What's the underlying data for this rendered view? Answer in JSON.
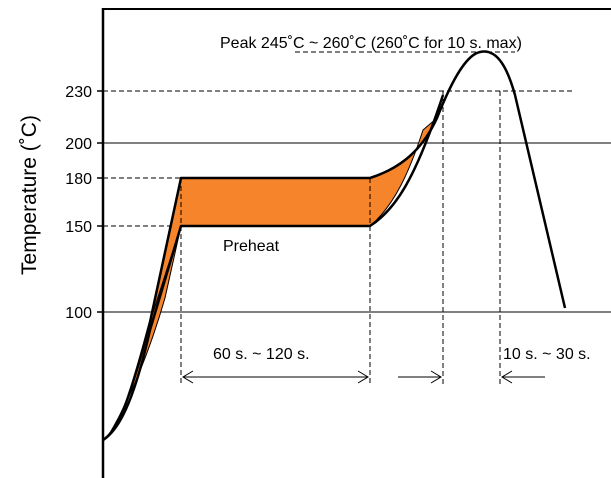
{
  "chart_data": {
    "type": "line",
    "title": "",
    "xlabel": "",
    "ylabel": "Temperature (˚C)",
    "yticks": [
      {
        "value": 100,
        "label": "100",
        "gridline": "solid"
      },
      {
        "value": 150,
        "label": "150",
        "gridline": "dashed-left"
      },
      {
        "value": 180,
        "label": "180",
        "gridline": "dashed-left"
      },
      {
        "value": 200,
        "label": "200",
        "gridline": "solid"
      },
      {
        "value": 230,
        "label": "230",
        "gridline": "dashed"
      }
    ],
    "grid": true,
    "legend": "none",
    "fill_color": "#f5842a",
    "curve_color": "#000000",
    "annotations": {
      "peak": "Peak 245˚C ~ 260˚C (260˚C for 10 s. max)",
      "preheat": "Preheat",
      "preheat_time": "60 s. ~ 120 s.",
      "peak_time": "10 s. ~ 30 s."
    }
  }
}
